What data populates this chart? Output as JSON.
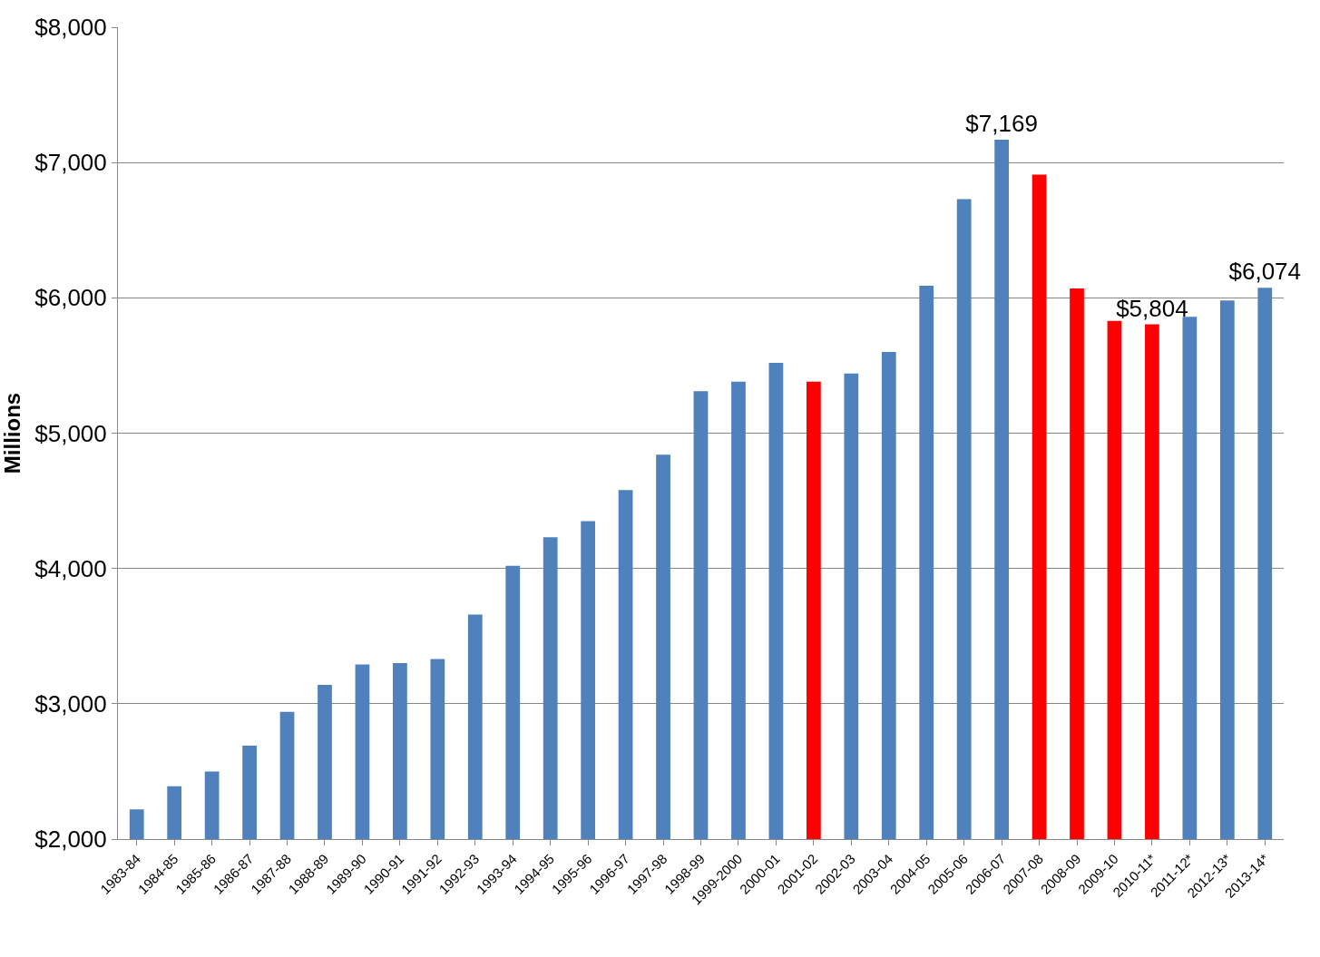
{
  "chart_data": {
    "type": "bar",
    "ylabel": "Millions",
    "categories": [
      "1983-84",
      "1984-85",
      "1985-86",
      "1986-87",
      "1987-88",
      "1988-89",
      "1989-90",
      "1990-91",
      "1991-92",
      "1992-93",
      "1993-94",
      "1994-95",
      "1995-96",
      "1996-97",
      "1997-98",
      "1998-99",
      "1999-2000",
      "2000-01",
      "2001-02",
      "2002-03",
      "2003-04",
      "2004-05",
      "2005-06",
      "2006-07",
      "2007-08",
      "2008-09",
      "2009-10",
      "2010-11*",
      "2011-12*",
      "2012-13*",
      "2013-14*"
    ],
    "values": [
      2220,
      2390,
      2500,
      2690,
      2940,
      3140,
      3290,
      3300,
      3330,
      3660,
      4020,
      4230,
      4350,
      4580,
      4840,
      5310,
      5380,
      5520,
      5380,
      5440,
      5600,
      6090,
      6730,
      7169,
      6910,
      6070,
      5830,
      5804,
      5860,
      5980,
      6074
    ],
    "value_labels": [
      null,
      null,
      null,
      null,
      null,
      null,
      null,
      null,
      null,
      null,
      null,
      null,
      null,
      null,
      null,
      null,
      null,
      null,
      null,
      null,
      null,
      null,
      null,
      "$7,169",
      null,
      null,
      null,
      "$5,804",
      null,
      null,
      "$6,074"
    ],
    "colors": [
      "#4f81bd",
      "#4f81bd",
      "#4f81bd",
      "#4f81bd",
      "#4f81bd",
      "#4f81bd",
      "#4f81bd",
      "#4f81bd",
      "#4f81bd",
      "#4f81bd",
      "#4f81bd",
      "#4f81bd",
      "#4f81bd",
      "#4f81bd",
      "#4f81bd",
      "#4f81bd",
      "#4f81bd",
      "#4f81bd",
      "#ff0000",
      "#4f81bd",
      "#4f81bd",
      "#4f81bd",
      "#4f81bd",
      "#4f81bd",
      "#ff0000",
      "#ff0000",
      "#ff0000",
      "#ff0000",
      "#4f81bd",
      "#4f81bd",
      "#4f81bd"
    ],
    "ylim": [
      2000,
      8000
    ],
    "yticks": [
      {
        "value": 2000,
        "label": "$2,000"
      },
      {
        "value": 3000,
        "label": "$3,000"
      },
      {
        "value": 4000,
        "label": "$4,000"
      },
      {
        "value": 5000,
        "label": "$5,000"
      },
      {
        "value": 6000,
        "label": "$6,000"
      },
      {
        "value": 7000,
        "label": "$7,000"
      },
      {
        "value": 8000,
        "label": "$8,000"
      }
    ],
    "grid": "y"
  }
}
